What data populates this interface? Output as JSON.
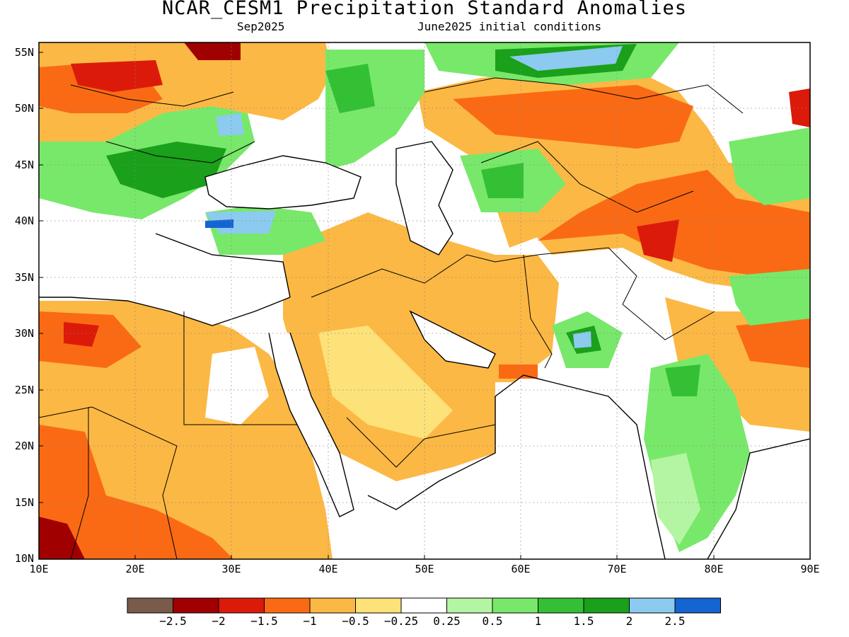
{
  "title": "NCAR_CESM1 Precipitation Standard Anomalies",
  "subtitle_left": "Sep2025",
  "subtitle_right": "June2025 initial conditions",
  "lat_labels": [
    "55N",
    "50N",
    "45N",
    "40N",
    "35N",
    "30N",
    "25N",
    "20N",
    "15N",
    "10N"
  ],
  "lon_labels": [
    "10E",
    "20E",
    "30E",
    "40E",
    "50E",
    "60E",
    "70E",
    "80E",
    "90E"
  ],
  "colorbar": {
    "colors": [
      "#7a5a4a",
      "#a00000",
      "#dc1a0a",
      "#fa6a14",
      "#fcb844",
      "#fde27a",
      "#ffffff",
      "#b4f5a4",
      "#78e86a",
      "#34c034",
      "#1aa01a",
      "#8ccaf0",
      "#1464d2"
    ],
    "labels": [
      "−2.5",
      "−2",
      "−1.5",
      "−1",
      "−0.5",
      "−0.25",
      "0.25",
      "0.5",
      "1",
      "1.5",
      "2",
      "2.5"
    ]
  },
  "colors": {
    "dry_strong": "#a00000",
    "dry": "#fa6a14",
    "dry_weak": "#fcb844",
    "wet": "#78e86a",
    "wet_strong": "#1aa01a",
    "very_wet": "#8ccaf0"
  }
}
